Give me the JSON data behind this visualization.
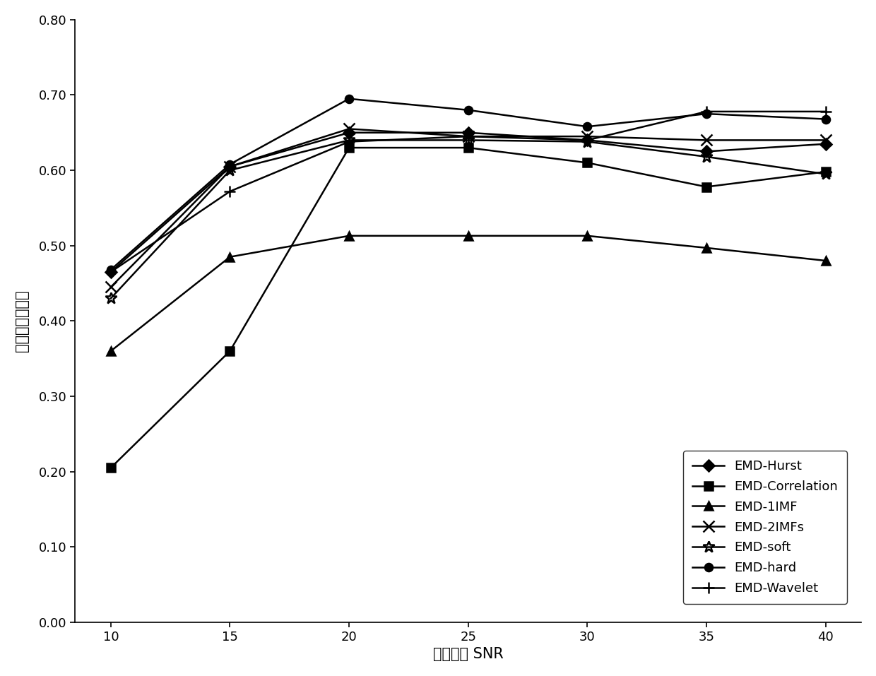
{
  "x": [
    10,
    15,
    20,
    25,
    30,
    35,
    40
  ],
  "series": {
    "EMD-Hurst": [
      0.465,
      0.605,
      0.65,
      0.65,
      0.64,
      0.625,
      0.635
    ],
    "EMD-Correlation": [
      0.205,
      0.36,
      0.63,
      0.63,
      0.61,
      0.578,
      0.598
    ],
    "EMD-1IMF": [
      0.36,
      0.485,
      0.513,
      0.513,
      0.513,
      0.497,
      0.48
    ],
    "EMD-2IMFs": [
      0.445,
      0.605,
      0.655,
      0.645,
      0.645,
      0.64,
      0.64
    ],
    "EMD-soft": [
      0.43,
      0.6,
      0.64,
      0.64,
      0.638,
      0.618,
      0.595
    ],
    "EMD-hard": [
      0.468,
      0.608,
      0.695,
      0.68,
      0.658,
      0.675,
      0.668
    ],
    "EMD-Wavelet": [
      0.465,
      0.572,
      0.638,
      0.645,
      0.64,
      0.678,
      0.678
    ]
  },
  "markers": {
    "EMD-Hurst": "D",
    "EMD-Correlation": "s",
    "EMD-1IMF": "^",
    "EMD-2IMFs": "x",
    "EMD-soft": "*",
    "EMD-hard": "o",
    "EMD-Wavelet": "+"
  },
  "xlabel": "模拟波形 SNR",
  "ylabel": "波形分解一致率",
  "ylim": [
    0.0,
    0.8
  ],
  "yticks": [
    0.0,
    0.1,
    0.2,
    0.3,
    0.4,
    0.5,
    0.6,
    0.7,
    0.8
  ],
  "xticks": [
    10,
    15,
    20,
    25,
    30,
    35,
    40
  ],
  "color": "#000000",
  "linewidth": 1.8,
  "markersize": 8,
  "background_color": "#ffffff"
}
